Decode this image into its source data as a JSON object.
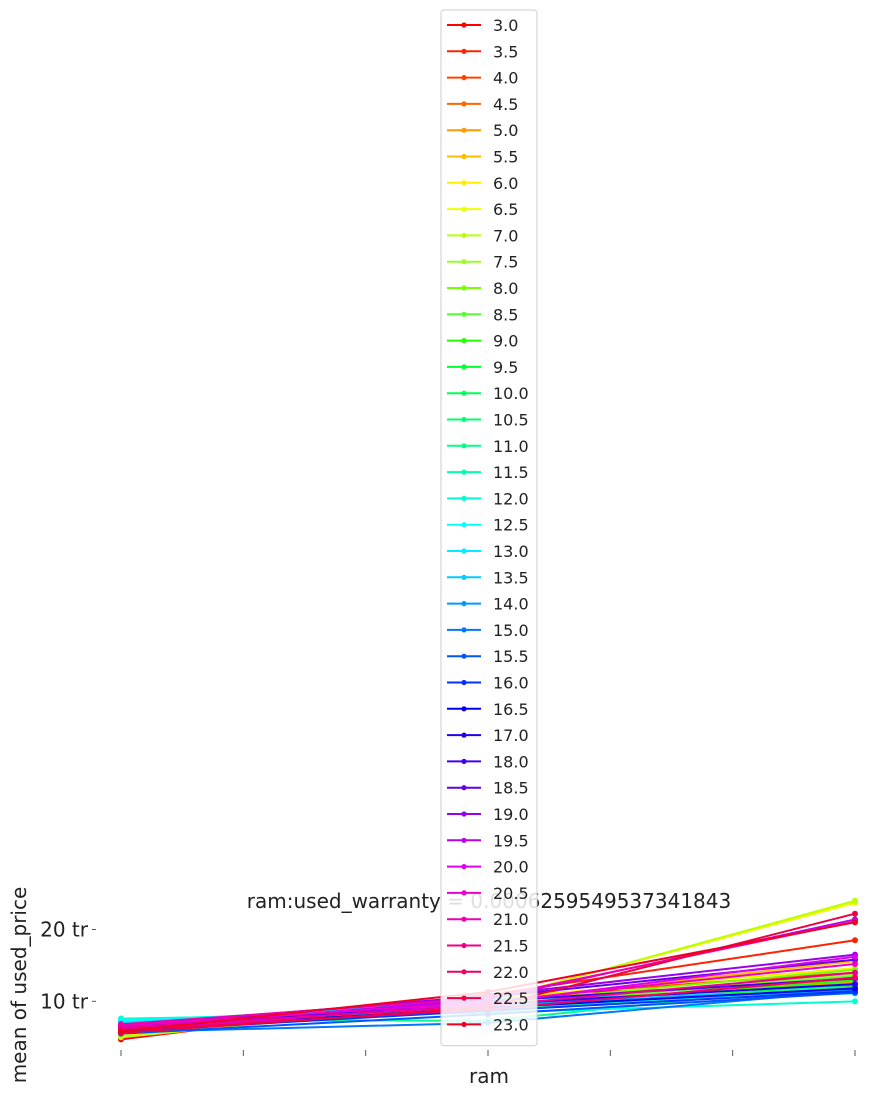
{
  "chart_data": {
    "type": "line",
    "title": "ram:used_warranty = 0.0006259549537341843",
    "xlabel": "ram",
    "ylabel": "mean of used_price",
    "x": [
      1,
      2,
      3
    ],
    "x_ticks_major": [
      1,
      2,
      3
    ],
    "x_ticks_minor_between": 2,
    "x_tick_labels": [],
    "xlim": [
      0.97,
      3.03
    ],
    "ylim": [
      3.5,
      25.5
    ],
    "y_ticks": [
      10,
      20
    ],
    "y_tick_labels": [
      "10 tr",
      "20 tr"
    ],
    "grid": false,
    "legend_position": "top-center",
    "series": [
      {
        "name": "3.0",
        "color": "#ff0000",
        "values": [
          4.7,
          11.0,
          12.2
        ]
      },
      {
        "name": "3.5",
        "color": "#ff2200",
        "values": [
          5.4,
          10.9,
          18.5
        ]
      },
      {
        "name": "4.0",
        "color": "#ff4400",
        "values": [
          5.1,
          10.5,
          14.0
        ]
      },
      {
        "name": "4.5",
        "color": "#ff6600",
        "values": [
          5.6,
          10.2,
          13.0
        ]
      },
      {
        "name": "5.0",
        "color": "#ff9900",
        "values": [
          5.2,
          9.6,
          12.6
        ]
      },
      {
        "name": "5.5",
        "color": "#ffbb00",
        "values": [
          5.9,
          9.9,
          15.6
        ]
      },
      {
        "name": "6.0",
        "color": "#ffee00",
        "values": [
          6.2,
          10.4,
          14.6
        ]
      },
      {
        "name": "6.5",
        "color": "#eeff00",
        "values": [
          5.3,
          10.1,
          23.7
        ]
      },
      {
        "name": "7.0",
        "color": "#bbff00",
        "values": [
          5.0,
          10.0,
          24.0
        ]
      },
      {
        "name": "7.5",
        "color": "#99ff22",
        "values": [
          6.5,
          9.2,
          13.8
        ]
      },
      {
        "name": "8.0",
        "color": "#77ff00",
        "values": [
          7.2,
          9.7,
          14.4
        ]
      },
      {
        "name": "8.5",
        "color": "#55ff33",
        "values": [
          6.8,
          9.4,
          13.5
        ]
      },
      {
        "name": "9.0",
        "color": "#22ff00",
        "values": [
          6.4,
          9.1,
          12.9
        ]
      },
      {
        "name": "9.5",
        "color": "#00ff33",
        "values": [
          6.0,
          8.9,
          12.3
        ]
      },
      {
        "name": "10.0",
        "color": "#00ff55",
        "values": [
          6.6,
          8.6,
          11.9
        ]
      },
      {
        "name": "10.5",
        "color": "#00ff77",
        "values": [
          7.0,
          9.0,
          12.0
        ]
      },
      {
        "name": "11.0",
        "color": "#00ff88",
        "values": [
          7.4,
          7.3,
          12.5
        ]
      },
      {
        "name": "11.5",
        "color": "#00ffaa",
        "values": [
          7.5,
          8.8,
          11.7
        ]
      },
      {
        "name": "12.0",
        "color": "#00ffcc",
        "values": [
          7.6,
          8.4,
          10.0
        ]
      },
      {
        "name": "12.5",
        "color": "#00ffff",
        "values": [
          7.3,
          9.3,
          11.4
        ]
      },
      {
        "name": "13.0",
        "color": "#00eeff",
        "values": [
          7.1,
          9.8,
          11.1
        ]
      },
      {
        "name": "13.5",
        "color": "#00ccff",
        "values": [
          6.9,
          10.3,
          11.3
        ]
      },
      {
        "name": "14.0",
        "color": "#0099ff",
        "values": [
          6.3,
          9.5,
          11.6
        ]
      },
      {
        "name": "15.0",
        "color": "#0077ff",
        "values": [
          5.7,
          7.0,
          11.5
        ]
      },
      {
        "name": "15.5",
        "color": "#0055ff",
        "values": [
          5.5,
          8.2,
          11.2
        ]
      },
      {
        "name": "16.0",
        "color": "#0033ff",
        "values": [
          5.8,
          8.7,
          11.4
        ]
      },
      {
        "name": "16.5",
        "color": "#0000ee",
        "values": [
          6.0,
          9.1,
          11.8
        ]
      },
      {
        "name": "17.0",
        "color": "#2200ee",
        "values": [
          6.4,
          9.6,
          12.4
        ]
      },
      {
        "name": "18.0",
        "color": "#4400ee",
        "values": [
          6.1,
          10.0,
          13.2
        ]
      },
      {
        "name": "18.5",
        "color": "#6600dd",
        "values": [
          6.7,
          10.6,
          15.8
        ]
      },
      {
        "name": "19.0",
        "color": "#9900ee",
        "values": [
          6.5,
          10.8,
          16.5
        ]
      },
      {
        "name": "19.5",
        "color": "#bb00ee",
        "values": [
          6.2,
          10.3,
          21.4
        ]
      },
      {
        "name": "20.0",
        "color": "#dd00ee",
        "values": [
          5.9,
          9.7,
          16.2
        ]
      },
      {
        "name": "20.5",
        "color": "#ee00cc",
        "values": [
          6.6,
          9.9,
          15.2
        ]
      },
      {
        "name": "21.0",
        "color": "#ee00aa",
        "values": [
          6.8,
          10.5,
          21.1
        ]
      },
      {
        "name": "21.5",
        "color": "#ee0088",
        "values": [
          6.3,
          9.4,
          14.0
        ]
      },
      {
        "name": "22.0",
        "color": "#ee0066",
        "values": [
          6.0,
          8.9,
          13.3
        ]
      },
      {
        "name": "22.5",
        "color": "#ee0044",
        "values": [
          5.6,
          9.2,
          22.2
        ]
      },
      {
        "name": "23.0",
        "color": "#ee0022",
        "values": [
          5.8,
          11.3,
          21.0
        ]
      }
    ]
  }
}
